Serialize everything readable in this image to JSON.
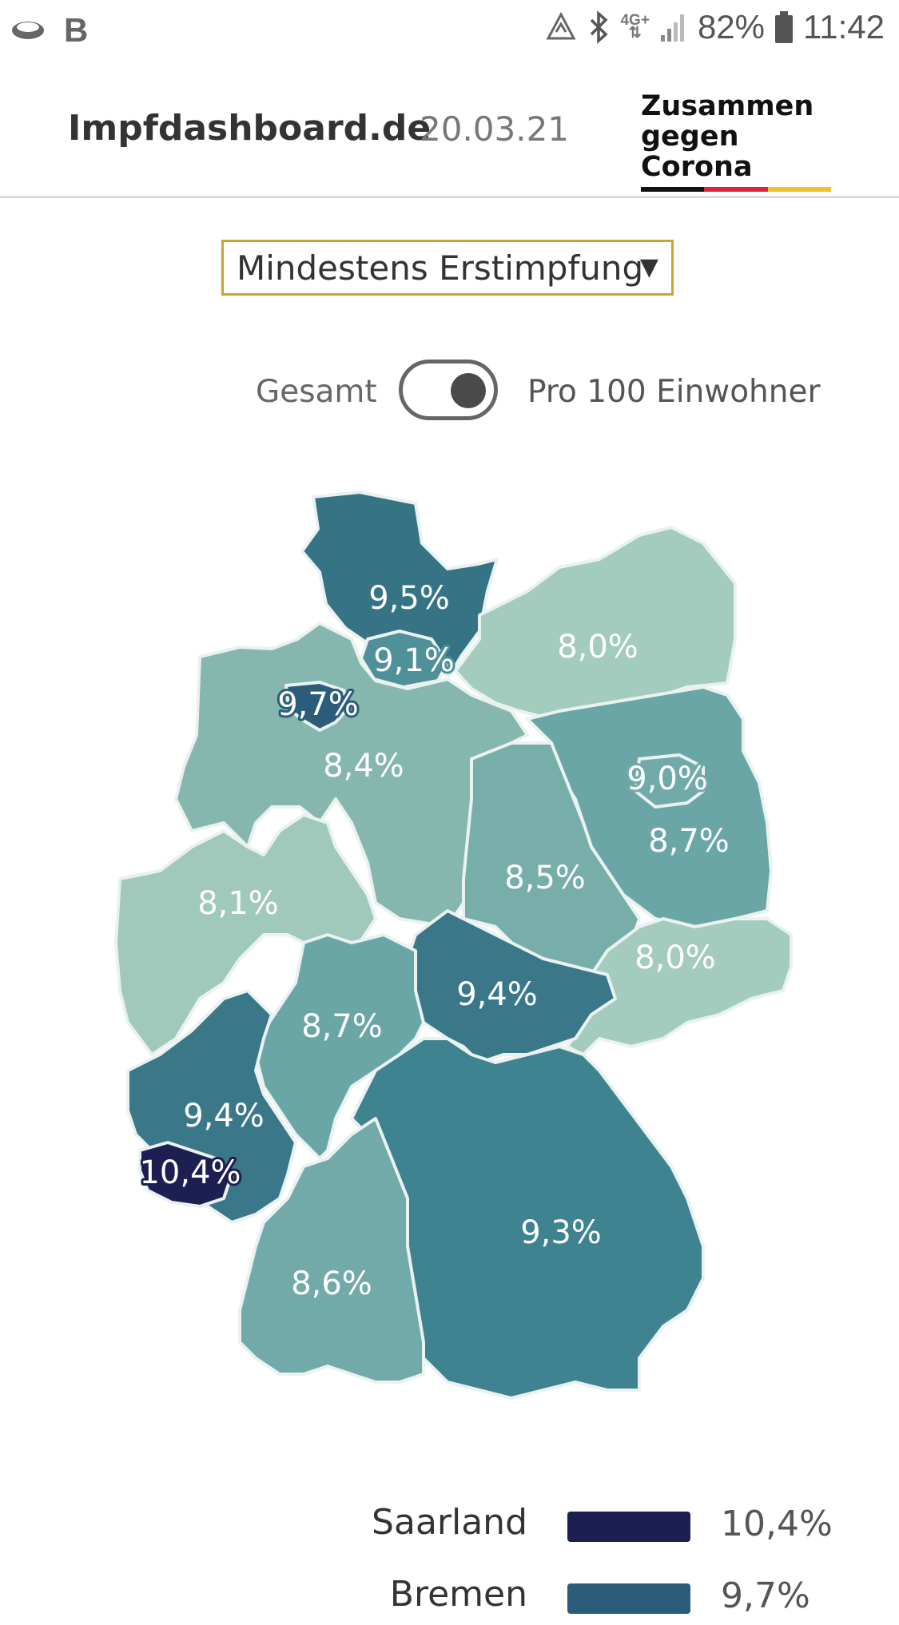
{
  "status_bar": {
    "network": "4G+",
    "battery": "82%",
    "time": "11:42",
    "left_letter": "B"
  },
  "header": {
    "brand": "Impfdashboard.de",
    "date": "20.03.21",
    "logo_line1": "Zusammen",
    "logo_line2": "gegen Corona",
    "logo_colors": [
      "#111111",
      "#d7263d",
      "#f0c033"
    ]
  },
  "dropdown": {
    "selected": "Mindestens Erstimpfung",
    "arrow": "▼"
  },
  "toggle": {
    "left_label": "Gesamt",
    "right_label": "Pro 100 Einwohner",
    "state": "Pro 100 Einwohner"
  },
  "map": {
    "labels": {
      "schleswig_holstein": "9,5%",
      "hamburg": "9,1%",
      "mecklenburg_vorpommern": "8,0%",
      "bremen": "9,7%",
      "niedersachsen": "8,4%",
      "berlin": "9,0%",
      "brandenburg": "8,7%",
      "sachsen_anhalt": "8,5%",
      "nordrhein_westfalen": "8,1%",
      "sachsen": "8,0%",
      "thueringen": "9,4%",
      "hessen": "8,7%",
      "rheinland_pfalz": "9,4%",
      "saarland": "10,4%",
      "bayern": "9,3%",
      "baden_wuerttemberg": "8,6%"
    },
    "colors": {
      "c_80": "#a3cbbe",
      "c_81": "#a0c8bb",
      "c_84": "#86b7ae",
      "c_85": "#77aeaa",
      "c_86": "#71aaa8",
      "c_87": "#6aa6a6",
      "c_91": "#4f9099",
      "c_93": "#3f8290",
      "c_94": "#3a7889",
      "c_95": "#367485",
      "c_97": "#2b5d7a",
      "c_104": "#1d1e52"
    }
  },
  "legend": [
    {
      "name": "Saarland",
      "value": "10,4%",
      "color": "#1d1e52"
    },
    {
      "name": "Bremen",
      "value": "9,7%",
      "color": "#2b5d7a"
    }
  ]
}
